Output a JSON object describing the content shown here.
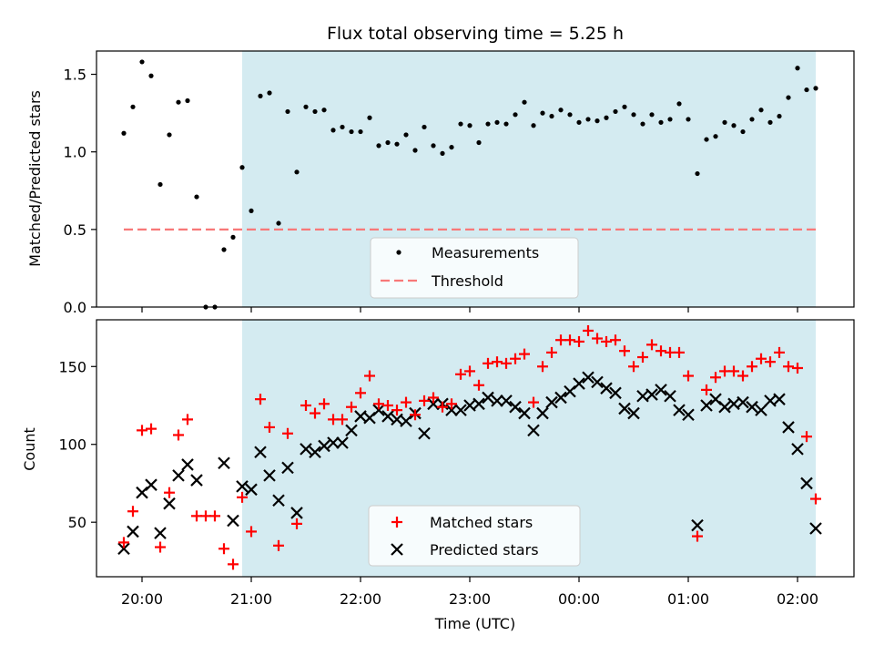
{
  "chart_data": [
    {
      "type": "scatter",
      "title": "Flux total observing time = 5.25 h",
      "ylabel": "Matched/Predicted stars",
      "xlabel": "",
      "ylim": [
        0,
        1.65
      ],
      "yticks": [
        0.0,
        0.5,
        1.0,
        1.5
      ],
      "ytick_labels": [
        "0.0",
        "0.5",
        "1.0",
        "1.5"
      ],
      "xlim": [
        "19:35",
        "02:31"
      ],
      "shaded_region": [
        "20:55",
        "02:10"
      ],
      "threshold": {
        "name": "Threshold",
        "value": 0.5,
        "x_range": [
          "19:50",
          "02:10"
        ],
        "color": "#f87878"
      },
      "legend": {
        "placement": "lower-center",
        "entries": [
          "Measurements",
          "Threshold"
        ]
      },
      "series": [
        {
          "name": "Measurements",
          "color": "#000000",
          "x": [
            "19:50",
            "19:55",
            "20:00",
            "20:05",
            "20:10",
            "20:15",
            "20:20",
            "20:25",
            "20:30",
            "20:35",
            "20:40",
            "20:45",
            "20:50",
            "20:55",
            "21:00",
            "21:05",
            "21:10",
            "21:15",
            "21:20",
            "21:25",
            "21:30",
            "21:35",
            "21:40",
            "21:45",
            "21:50",
            "21:55",
            "22:00",
            "22:05",
            "22:10",
            "22:15",
            "22:20",
            "22:25",
            "22:30",
            "22:35",
            "22:40",
            "22:45",
            "22:50",
            "22:55",
            "23:00",
            "23:05",
            "23:10",
            "23:15",
            "23:20",
            "23:25",
            "23:30",
            "23:35",
            "23:40",
            "23:45",
            "23:50",
            "23:55",
            "00:00",
            "00:05",
            "00:10",
            "00:15",
            "00:20",
            "00:25",
            "00:30",
            "00:35",
            "00:40",
            "00:45",
            "00:50",
            "00:55",
            "01:00",
            "01:05",
            "01:10",
            "01:15",
            "01:20",
            "01:25",
            "01:30",
            "01:35",
            "01:40",
            "01:45",
            "01:50",
            "01:55",
            "02:00",
            "02:05",
            "02:10"
          ],
          "y": [
            1.12,
            1.29,
            1.58,
            1.49,
            0.79,
            1.11,
            1.32,
            1.33,
            0.71,
            0.0,
            0.0,
            0.37,
            0.45,
            0.9,
            0.62,
            1.36,
            1.38,
            0.54,
            1.26,
            0.87,
            1.29,
            1.26,
            1.27,
            1.14,
            1.16,
            1.13,
            1.13,
            1.22,
            1.04,
            1.06,
            1.05,
            1.11,
            1.01,
            1.16,
            1.04,
            0.99,
            1.03,
            1.18,
            1.17,
            1.06,
            1.18,
            1.19,
            1.18,
            1.24,
            1.32,
            1.17,
            1.25,
            1.23,
            1.27,
            1.24,
            1.19,
            1.21,
            1.2,
            1.22,
            1.26,
            1.29,
            1.24,
            1.18,
            1.24,
            1.19,
            1.21,
            1.31,
            1.21,
            0.86,
            1.08,
            1.1,
            1.19,
            1.17,
            1.13,
            1.21,
            1.27,
            1.19,
            1.23,
            1.35,
            1.54,
            1.4,
            1.41
          ]
        }
      ]
    },
    {
      "type": "scatter",
      "title": "",
      "ylabel": "Count",
      "xlabel": "Time (UTC)",
      "ylim": [
        15,
        180
      ],
      "yticks": [
        50,
        100,
        150
      ],
      "ytick_labels": [
        "50",
        "100",
        "150"
      ],
      "xlim": [
        "19:35",
        "02:31"
      ],
      "xticks": [
        "20:00",
        "21:00",
        "22:00",
        "23:00",
        "00:00",
        "01:00",
        "02:00"
      ],
      "xtick_labels": [
        "20:00",
        "21:00",
        "22:00",
        "23:00",
        "00:00",
        "01:00",
        "02:00"
      ],
      "shaded_region": [
        "20:55",
        "02:10"
      ],
      "legend": {
        "placement": "lower-center",
        "entries": [
          "Matched stars",
          "Predicted stars"
        ]
      },
      "series": [
        {
          "name": "Matched stars",
          "color": "#ff0000",
          "marker": "+",
          "x": [
            "19:50",
            "19:55",
            "20:00",
            "20:05",
            "20:10",
            "20:15",
            "20:20",
            "20:25",
            "20:30",
            "20:35",
            "20:40",
            "20:45",
            "20:50",
            "20:55",
            "21:00",
            "21:05",
            "21:10",
            "21:15",
            "21:20",
            "21:25",
            "21:30",
            "21:35",
            "21:40",
            "21:45",
            "21:50",
            "21:55",
            "22:00",
            "22:05",
            "22:10",
            "22:15",
            "22:20",
            "22:25",
            "22:30",
            "22:35",
            "22:40",
            "22:45",
            "22:50",
            "22:55",
            "23:00",
            "23:05",
            "23:10",
            "23:15",
            "23:20",
            "23:25",
            "23:30",
            "23:35",
            "23:40",
            "23:45",
            "23:50",
            "23:55",
            "00:00",
            "00:05",
            "00:10",
            "00:15",
            "00:20",
            "00:25",
            "00:30",
            "00:35",
            "00:40",
            "00:45",
            "00:50",
            "00:55",
            "01:00",
            "01:05",
            "01:10",
            "01:15",
            "01:20",
            "01:25",
            "01:30",
            "01:35",
            "01:40",
            "01:45",
            "01:50",
            "01:55",
            "02:00",
            "02:05",
            "02:10"
          ],
          "y": [
            37,
            57,
            109,
            110,
            34,
            69,
            106,
            116,
            54,
            54,
            54,
            33,
            23,
            66,
            44,
            129,
            111,
            35,
            107,
            49,
            125,
            120,
            126,
            116,
            116,
            124,
            133,
            144,
            126,
            125,
            122,
            127,
            119,
            128,
            130,
            124,
            126,
            145,
            147,
            138,
            152,
            153,
            152,
            155,
            158,
            127,
            150,
            159,
            167,
            167,
            166,
            173,
            168,
            166,
            167,
            160,
            150,
            156,
            164,
            160,
            159,
            159,
            144,
            41,
            135,
            143,
            147,
            147,
            144,
            150,
            155,
            153,
            159,
            150,
            149,
            105,
            65
          ]
        },
        {
          "name": "Predicted stars",
          "color": "#000000",
          "marker": "x",
          "x": [
            "19:50",
            "19:55",
            "20:00",
            "20:05",
            "20:10",
            "20:15",
            "20:20",
            "20:25",
            "20:30",
            "20:35",
            "20:40",
            "20:45",
            "20:50",
            "20:55",
            "21:00",
            "21:05",
            "21:10",
            "21:15",
            "21:20",
            "21:25",
            "21:30",
            "21:35",
            "21:40",
            "21:45",
            "21:50",
            "21:55",
            "22:00",
            "22:05",
            "22:10",
            "22:15",
            "22:20",
            "22:25",
            "22:30",
            "22:35",
            "22:40",
            "22:45",
            "22:50",
            "22:55",
            "23:00",
            "23:05",
            "23:10",
            "23:15",
            "23:20",
            "23:25",
            "23:30",
            "23:35",
            "23:40",
            "23:45",
            "23:50",
            "23:55",
            "00:00",
            "00:05",
            "00:10",
            "00:15",
            "00:20",
            "00:25",
            "00:30",
            "00:35",
            "00:40",
            "00:45",
            "00:50",
            "00:55",
            "01:00",
            "01:05",
            "01:10",
            "01:15",
            "01:20",
            "01:25",
            "01:30",
            "01:35",
            "01:40",
            "01:45",
            "01:50",
            "01:55",
            "02:00",
            "02:05",
            "02:10"
          ],
          "y": [
            33,
            44,
            69,
            74,
            43,
            62,
            80,
            87,
            77,
            null,
            null,
            88,
            51,
            73,
            71,
            95,
            80,
            64,
            85,
            56,
            97,
            95,
            99,
            101,
            101,
            109,
            118,
            117,
            122,
            118,
            116,
            115,
            120,
            107,
            126,
            126,
            122,
            122,
            125,
            126,
            130,
            128,
            128,
            124,
            120,
            109,
            120,
            127,
            130,
            134,
            139,
            143,
            140,
            136,
            133,
            123,
            120,
            131,
            132,
            135,
            131,
            122,
            119,
            48,
            125,
            129,
            124,
            126,
            127,
            124,
            122,
            128,
            129,
            111,
            97,
            75,
            46
          ]
        }
      ]
    }
  ]
}
